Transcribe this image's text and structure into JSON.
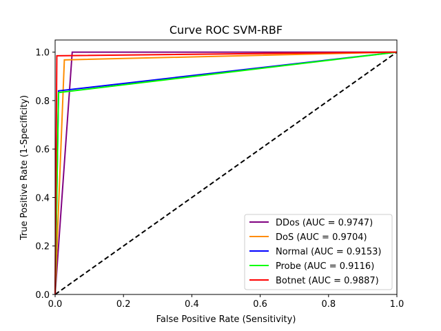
{
  "chart_data": {
    "type": "line",
    "title": "Curve ROC SVM-RBF",
    "xlabel": "False Positive Rate (Sensitivity)",
    "ylabel": "True Positive Rate (1-Specificity)",
    "xlim": [
      0.0,
      1.0
    ],
    "ylim": [
      0.0,
      1.05
    ],
    "xticks": [
      "0.0",
      "0.2",
      "0.4",
      "0.6",
      "0.8",
      "1.0"
    ],
    "yticks": [
      "0.0",
      "0.2",
      "0.4",
      "0.6",
      "0.8",
      "1.0"
    ],
    "grid": false,
    "legend_position": "lower-right",
    "series": [
      {
        "name": "DDos (AUC = 0.9747)",
        "color": "#800080",
        "x": [
          0.0,
          0.05,
          1.0
        ],
        "y": [
          0.0,
          1.0,
          1.0
        ]
      },
      {
        "name": "DoS (AUC = 0.9704)",
        "color": "#ff8c00",
        "x": [
          0.0,
          0.027,
          1.0
        ],
        "y": [
          0.0,
          0.968,
          1.0
        ]
      },
      {
        "name": "Normal (AUC = 0.9153)",
        "color": "#0000ff",
        "x": [
          0.0,
          0.01,
          1.0
        ],
        "y": [
          0.0,
          0.84,
          1.0
        ]
      },
      {
        "name": "Probe (AUC = 0.9116)",
        "color": "#00ff00",
        "x": [
          0.0,
          0.01,
          1.0
        ],
        "y": [
          0.0,
          0.833,
          1.0
        ]
      },
      {
        "name": "Botnet (AUC = 0.9887)",
        "color": "#ff0000",
        "x": [
          0.0,
          0.005,
          1.0
        ],
        "y": [
          0.0,
          0.985,
          1.0
        ]
      }
    ],
    "reference_line": {
      "x": [
        0.0,
        1.0
      ],
      "y": [
        0.0,
        1.0
      ],
      "color": "#000000",
      "style": "dashed"
    }
  }
}
